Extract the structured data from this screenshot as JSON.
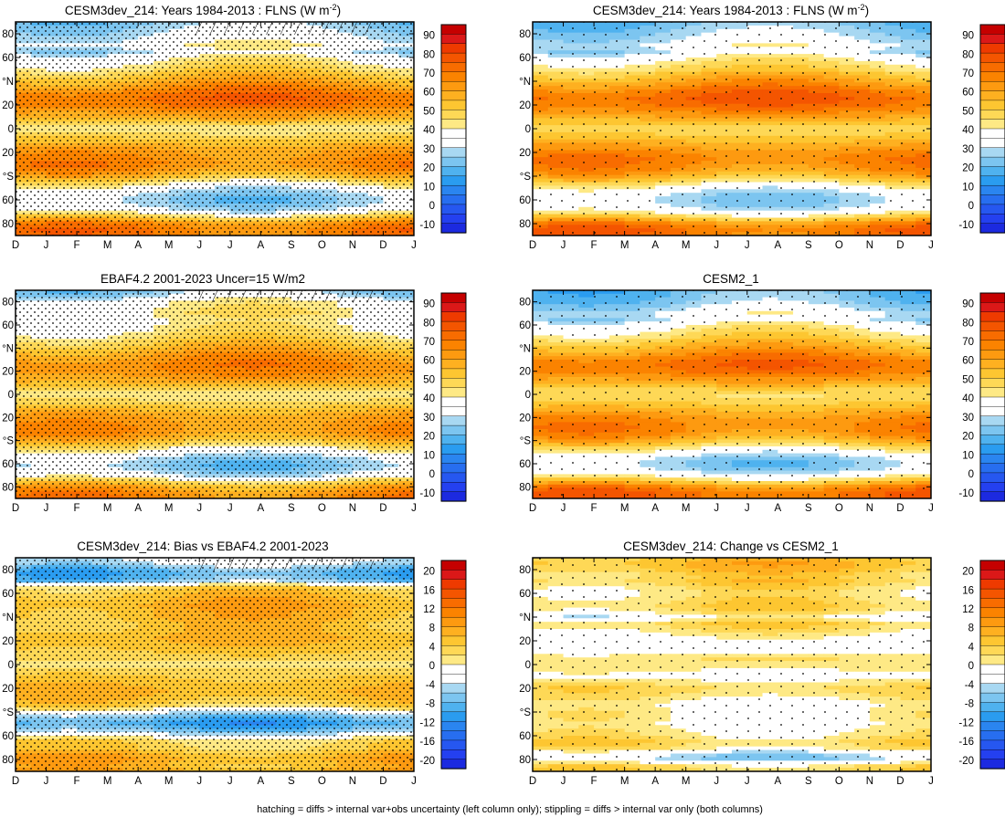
{
  "chart_data": {
    "type": "heatmap",
    "footnote": "hatching = diffs > internal var+obs uncertainty (left column only); stippling = diffs > internal var only (both columns)",
    "month_labels": [
      "D",
      "J",
      "F",
      "M",
      "A",
      "M",
      "J",
      "J",
      "A",
      "S",
      "O",
      "N",
      "D",
      "J"
    ],
    "lat_labels": [
      "80",
      "60",
      "°N",
      "20",
      "0",
      "20",
      "°S",
      "60",
      "80"
    ],
    "scales": {
      "abs": {
        "levels": [
          95,
          90,
          85,
          80,
          75,
          70,
          65,
          60,
          55,
          50,
          45,
          40,
          35,
          30,
          25,
          20,
          15,
          10,
          5,
          0,
          -5,
          -10,
          -15
        ],
        "labels": [
          "90",
          "80",
          "70",
          "60",
          "50",
          "40",
          "30",
          "20",
          "10",
          "0",
          "-10"
        ]
      },
      "diff": {
        "levels": [
          22,
          20,
          18,
          16,
          14,
          12,
          10,
          8,
          6,
          4,
          2,
          0,
          -2,
          -4,
          -6,
          -8,
          -10,
          -12,
          -14,
          -16,
          -18,
          -20,
          -22
        ],
        "labels": [
          "20",
          "16",
          "12",
          "8",
          "4",
          "0",
          "-4",
          "-8",
          "-12",
          "-16",
          "-20"
        ]
      }
    },
    "colors": [
      "#c50000",
      "#db1818",
      "#ee3a00",
      "#f45500",
      "#f86c00",
      "#fb8300",
      "#fd9a10",
      "#feb020",
      "#fdc631",
      "#fed856",
      "#fee985",
      "#ffffff",
      "#ffffff",
      "#a8d8f2",
      "#7cc5f0",
      "#4fb2ef",
      "#2a9cf0",
      "#2a85f0",
      "#276ef0",
      "#2657f0",
      "#2440f0",
      "#1c2ae0"
    ],
    "panels": [
      {
        "title": "CESM3dev_214: Years 1984-2013 : FLNS (W m",
        "title_sup": "-2",
        "title_tail": ")",
        "scale": "abs",
        "stipple": "dense",
        "hatch": true,
        "profile": [
          [
            -90,
            68
          ],
          [
            -85,
            70
          ],
          [
            -80,
            65
          ],
          [
            -75,
            50
          ],
          [
            -70,
            35
          ],
          [
            -65,
            28
          ],
          [
            -60,
            25
          ],
          [
            -55,
            28
          ],
          [
            -50,
            35
          ],
          [
            -45,
            43
          ],
          [
            -40,
            55
          ],
          [
            -35,
            62
          ],
          [
            -30,
            66
          ],
          [
            -25,
            64
          ],
          [
            -20,
            62
          ],
          [
            -15,
            58
          ],
          [
            -10,
            52
          ],
          [
            -5,
            46
          ],
          [
            0,
            42
          ],
          [
            5,
            50
          ],
          [
            10,
            58
          ],
          [
            15,
            64
          ],
          [
            20,
            70
          ],
          [
            25,
            72
          ],
          [
            30,
            70
          ],
          [
            35,
            64
          ],
          [
            40,
            58
          ],
          [
            45,
            52
          ],
          [
            50,
            46
          ],
          [
            55,
            42
          ],
          [
            60,
            38
          ],
          [
            65,
            30
          ],
          [
            70,
            38
          ],
          [
            75,
            33
          ],
          [
            80,
            30
          ],
          [
            85,
            28
          ],
          [
            90,
            25
          ]
        ]
      },
      {
        "title": "CESM3dev_214: Years 1984-2013 : FLNS (W m",
        "title_sup": "-2",
        "title_tail": ")",
        "scale": "abs",
        "stipple": "sparse",
        "hatch": false,
        "profile": [
          [
            -90,
            70
          ],
          [
            -85,
            72
          ],
          [
            -80,
            66
          ],
          [
            -75,
            50
          ],
          [
            -70,
            36
          ],
          [
            -65,
            30
          ],
          [
            -60,
            27
          ],
          [
            -55,
            30
          ],
          [
            -50,
            36
          ],
          [
            -45,
            45
          ],
          [
            -40,
            56
          ],
          [
            -35,
            63
          ],
          [
            -30,
            66
          ],
          [
            -25,
            68
          ],
          [
            -20,
            65
          ],
          [
            -15,
            60
          ],
          [
            -10,
            55
          ],
          [
            -5,
            50
          ],
          [
            0,
            46
          ],
          [
            5,
            52
          ],
          [
            10,
            60
          ],
          [
            15,
            66
          ],
          [
            20,
            72
          ],
          [
            25,
            74
          ],
          [
            30,
            72
          ],
          [
            35,
            66
          ],
          [
            40,
            60
          ],
          [
            45,
            54
          ],
          [
            50,
            47
          ],
          [
            55,
            43
          ],
          [
            60,
            38
          ],
          [
            65,
            30
          ],
          [
            70,
            35
          ],
          [
            75,
            30
          ],
          [
            80,
            27
          ],
          [
            85,
            24
          ],
          [
            90,
            22
          ]
        ]
      },
      {
        "title": "EBAF4.2 2001-2023 Uncer=15 W/m2",
        "scale": "abs",
        "stipple": "dense",
        "hatch": true,
        "profile": [
          [
            -90,
            66
          ],
          [
            -85,
            64
          ],
          [
            -80,
            58
          ],
          [
            -75,
            46
          ],
          [
            -70,
            32
          ],
          [
            -65,
            26
          ],
          [
            -60,
            24
          ],
          [
            -55,
            28
          ],
          [
            -50,
            36
          ],
          [
            -45,
            44
          ],
          [
            -40,
            54
          ],
          [
            -35,
            60
          ],
          [
            -30,
            63
          ],
          [
            -25,
            62
          ],
          [
            -20,
            60
          ],
          [
            -15,
            56
          ],
          [
            -10,
            50
          ],
          [
            -5,
            45
          ],
          [
            0,
            41
          ],
          [
            5,
            49
          ],
          [
            10,
            56
          ],
          [
            15,
            61
          ],
          [
            20,
            65
          ],
          [
            25,
            66
          ],
          [
            30,
            64
          ],
          [
            35,
            60
          ],
          [
            40,
            55
          ],
          [
            45,
            50
          ],
          [
            50,
            45
          ],
          [
            55,
            42
          ],
          [
            60,
            40
          ],
          [
            65,
            38
          ],
          [
            70,
            42
          ],
          [
            75,
            40
          ],
          [
            80,
            38
          ],
          [
            85,
            30
          ],
          [
            90,
            25
          ]
        ]
      },
      {
        "title": "CESM2_1",
        "scale": "abs",
        "stipple": "sparse",
        "hatch": false,
        "profile": [
          [
            -90,
            72
          ],
          [
            -85,
            72
          ],
          [
            -80,
            66
          ],
          [
            -75,
            50
          ],
          [
            -70,
            36
          ],
          [
            -65,
            28
          ],
          [
            -60,
            25
          ],
          [
            -55,
            28
          ],
          [
            -50,
            36
          ],
          [
            -45,
            45
          ],
          [
            -40,
            56
          ],
          [
            -35,
            63
          ],
          [
            -30,
            66
          ],
          [
            -25,
            66
          ],
          [
            -20,
            63
          ],
          [
            -15,
            58
          ],
          [
            -10,
            53
          ],
          [
            -5,
            48
          ],
          [
            0,
            44
          ],
          [
            5,
            50
          ],
          [
            10,
            58
          ],
          [
            15,
            64
          ],
          [
            20,
            70
          ],
          [
            25,
            72
          ],
          [
            30,
            70
          ],
          [
            35,
            64
          ],
          [
            40,
            58
          ],
          [
            45,
            52
          ],
          [
            50,
            46
          ],
          [
            55,
            42
          ],
          [
            60,
            38
          ],
          [
            65,
            30
          ],
          [
            70,
            34
          ],
          [
            75,
            28
          ],
          [
            80,
            24
          ],
          [
            85,
            22
          ],
          [
            90,
            20
          ]
        ]
      },
      {
        "title": "CESM3dev_214: Bias vs EBAF4.2 2001-2023",
        "scale": "diff",
        "stipple": "dense",
        "hatch": true,
        "profile": [
          [
            -90,
            7
          ],
          [
            -85,
            6
          ],
          [
            -80,
            7
          ],
          [
            -75,
            6
          ],
          [
            -70,
            3
          ],
          [
            -65,
            3
          ],
          [
            -60,
            -2
          ],
          [
            -55,
            -7
          ],
          [
            -50,
            -10
          ],
          [
            -45,
            -8
          ],
          [
            -40,
            -3
          ],
          [
            -35,
            3
          ],
          [
            -30,
            5
          ],
          [
            -25,
            6
          ],
          [
            -20,
            6
          ],
          [
            -15,
            5
          ],
          [
            -10,
            4
          ],
          [
            -5,
            3
          ],
          [
            0,
            1
          ],
          [
            5,
            3
          ],
          [
            10,
            4
          ],
          [
            15,
            5
          ],
          [
            20,
            6
          ],
          [
            25,
            6
          ],
          [
            30,
            5
          ],
          [
            35,
            5
          ],
          [
            40,
            6
          ],
          [
            45,
            6
          ],
          [
            50,
            7
          ],
          [
            55,
            6
          ],
          [
            60,
            5
          ],
          [
            65,
            3
          ],
          [
            70,
            -6
          ],
          [
            75,
            -9
          ],
          [
            80,
            -8
          ],
          [
            85,
            -4
          ],
          [
            90,
            -2
          ]
        ]
      },
      {
        "title": "CESM3dev_214: Change vs CESM2_1",
        "scale": "diff",
        "stipple": "sparse",
        "hatch": false,
        "profile": [
          [
            -90,
            3
          ],
          [
            -85,
            2
          ],
          [
            -80,
            -5
          ],
          [
            -75,
            -4
          ],
          [
            -70,
            2
          ],
          [
            -65,
            3
          ],
          [
            -60,
            1
          ],
          [
            -55,
            0
          ],
          [
            -50,
            -1
          ],
          [
            -45,
            0
          ],
          [
            -40,
            0
          ],
          [
            -35,
            -1
          ],
          [
            -30,
            0
          ],
          [
            -25,
            2
          ],
          [
            -20,
            3
          ],
          [
            -15,
            1
          ],
          [
            -10,
            -1
          ],
          [
            -5,
            0
          ],
          [
            0,
            1
          ],
          [
            5,
            2
          ],
          [
            10,
            -1
          ],
          [
            15,
            -3
          ],
          [
            20,
            -2
          ],
          [
            25,
            0
          ],
          [
            30,
            2
          ],
          [
            35,
            3
          ],
          [
            40,
            -2
          ],
          [
            45,
            2
          ],
          [
            50,
            3
          ],
          [
            55,
            2
          ],
          [
            60,
            1
          ],
          [
            65,
            2
          ],
          [
            70,
            4
          ],
          [
            75,
            3
          ],
          [
            80,
            5
          ],
          [
            85,
            6
          ],
          [
            90,
            5
          ]
        ]
      }
    ]
  }
}
